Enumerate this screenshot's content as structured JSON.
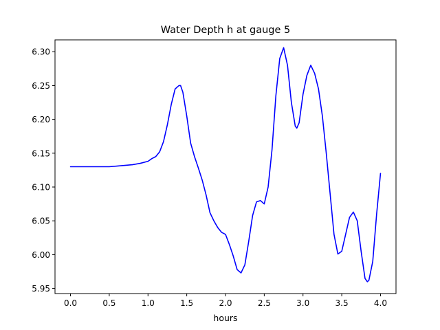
{
  "chart_data": {
    "type": "line",
    "title": "Water Depth h at gauge 5",
    "xlabel": "hours",
    "ylabel": "",
    "xlim": [
      -0.2,
      4.2
    ],
    "ylim": [
      5.9425,
      6.3175
    ],
    "x_ticks": [
      {
        "value": 0.0,
        "label": "0.0"
      },
      {
        "value": 0.5,
        "label": "0.5"
      },
      {
        "value": 1.0,
        "label": "1.0"
      },
      {
        "value": 1.5,
        "label": "1.5"
      },
      {
        "value": 2.0,
        "label": "2.0"
      },
      {
        "value": 2.5,
        "label": "2.5"
      },
      {
        "value": 3.0,
        "label": "3.0"
      },
      {
        "value": 3.5,
        "label": "3.5"
      },
      {
        "value": 4.0,
        "label": "4.0"
      }
    ],
    "y_ticks": [
      {
        "value": 5.95,
        "label": "5.95"
      },
      {
        "value": 6.0,
        "label": "6.00"
      },
      {
        "value": 6.05,
        "label": "6.05"
      },
      {
        "value": 6.1,
        "label": "6.10"
      },
      {
        "value": 6.15,
        "label": "6.15"
      },
      {
        "value": 6.2,
        "label": "6.20"
      },
      {
        "value": 6.25,
        "label": "6.25"
      },
      {
        "value": 6.3,
        "label": "6.30"
      }
    ],
    "grid": false,
    "series": [
      {
        "color": "#0000ff",
        "x": [
          0.0,
          0.2,
          0.4,
          0.5,
          0.6,
          0.7,
          0.8,
          0.9,
          1.0,
          1.05,
          1.1,
          1.15,
          1.2,
          1.25,
          1.3,
          1.35,
          1.4,
          1.42,
          1.45,
          1.5,
          1.55,
          1.6,
          1.65,
          1.7,
          1.75,
          1.8,
          1.85,
          1.9,
          1.95,
          2.0,
          2.05,
          2.1,
          2.15,
          2.2,
          2.25,
          2.3,
          2.35,
          2.4,
          2.45,
          2.5,
          2.55,
          2.6,
          2.65,
          2.7,
          2.75,
          2.8,
          2.85,
          2.9,
          2.92,
          2.95,
          3.0,
          3.05,
          3.1,
          3.15,
          3.2,
          3.25,
          3.3,
          3.35,
          3.4,
          3.45,
          3.5,
          3.55,
          3.6,
          3.65,
          3.7,
          3.75,
          3.8,
          3.83,
          3.85,
          3.9,
          3.95,
          4.0
        ],
        "y": [
          6.13,
          6.13,
          6.13,
          6.13,
          6.131,
          6.132,
          6.133,
          6.135,
          6.138,
          6.142,
          6.145,
          6.152,
          6.167,
          6.192,
          6.222,
          6.245,
          6.25,
          6.25,
          6.24,
          6.205,
          6.165,
          6.145,
          6.128,
          6.11,
          6.088,
          6.062,
          6.05,
          6.04,
          6.033,
          6.03,
          6.015,
          5.998,
          5.978,
          5.973,
          5.985,
          6.02,
          6.058,
          6.078,
          6.08,
          6.075,
          6.1,
          6.155,
          6.235,
          6.29,
          6.306,
          6.28,
          6.225,
          6.19,
          6.187,
          6.195,
          6.237,
          6.265,
          6.28,
          6.268,
          6.245,
          6.205,
          6.15,
          6.09,
          6.03,
          6.001,
          6.005,
          6.03,
          6.055,
          6.063,
          6.05,
          6.005,
          5.965,
          5.96,
          5.962,
          5.99,
          6.06,
          6.12
        ]
      }
    ]
  }
}
